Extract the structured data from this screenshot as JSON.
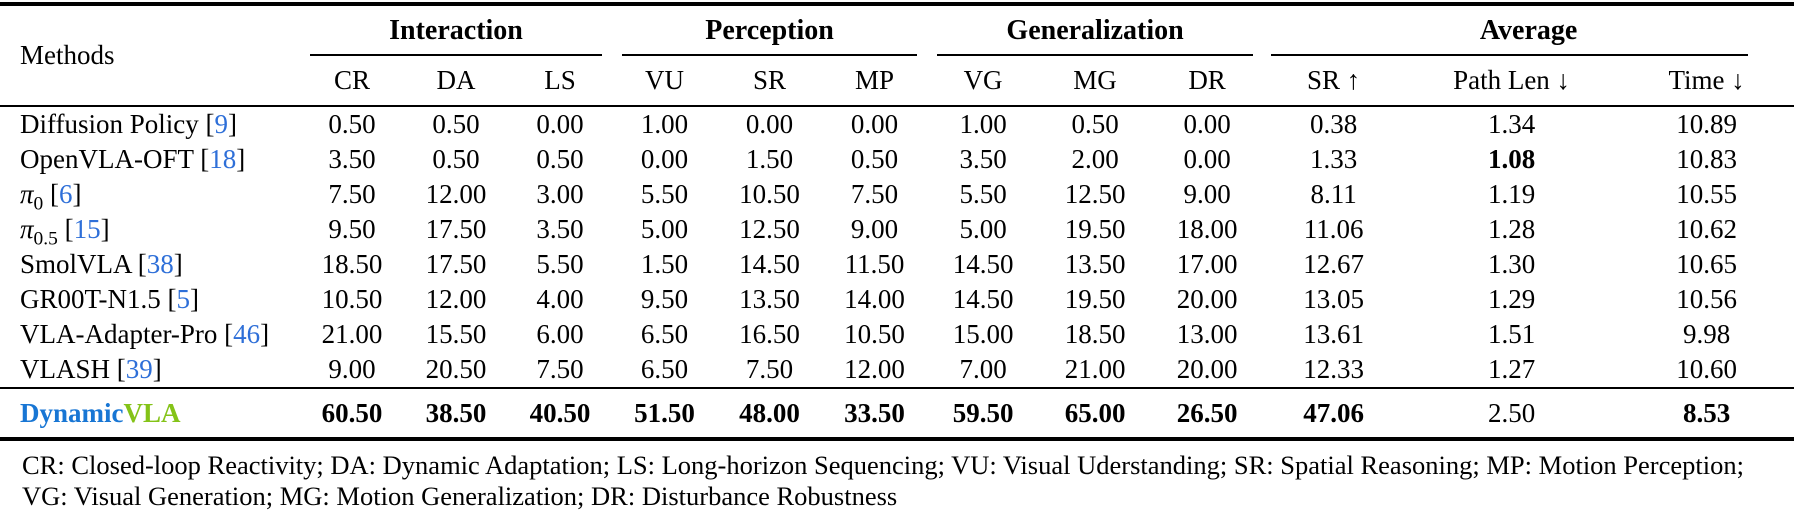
{
  "colors": {
    "citation": "#2e6fd8",
    "dynamic_blue": "#1876d4",
    "vla_green": "#84c318"
  },
  "table": {
    "col_methods": "Methods",
    "groups": [
      {
        "label": "Interaction",
        "cols": [
          "CR",
          "DA",
          "LS"
        ]
      },
      {
        "label": "Perception",
        "cols": [
          "VU",
          "SR",
          "MP"
        ]
      },
      {
        "label": "Generalization",
        "cols": [
          "VG",
          "MG",
          "DR"
        ]
      },
      {
        "label": "Average",
        "cols": [
          "SR ↑",
          "Path Len ↓",
          "Time ↓"
        ]
      }
    ],
    "rows": [
      {
        "method": [
          {
            "text": "Diffusion Policy"
          }
        ],
        "cite": "9",
        "values": [
          "0.50",
          "0.50",
          "0.00",
          "1.00",
          "0.00",
          "0.00",
          "1.00",
          "0.50",
          "0.00",
          "0.38",
          "1.34",
          "10.89"
        ],
        "bold": []
      },
      {
        "method": [
          {
            "text": "OpenVLA-OFT"
          }
        ],
        "cite": "18",
        "values": [
          "3.50",
          "0.50",
          "0.50",
          "0.00",
          "1.50",
          "0.50",
          "3.50",
          "2.00",
          "0.00",
          "1.33",
          "1.08",
          "10.83"
        ],
        "bold": [
          10
        ]
      },
      {
        "method": [
          {
            "text": "π",
            "italic": true
          },
          {
            "text": "0",
            "sub": true
          }
        ],
        "cite": "6",
        "values": [
          "7.50",
          "12.00",
          "3.00",
          "5.50",
          "10.50",
          "7.50",
          "5.50",
          "12.50",
          "9.00",
          "8.11",
          "1.19",
          "10.55"
        ],
        "bold": []
      },
      {
        "method": [
          {
            "text": "π",
            "italic": true
          },
          {
            "text": "0.5",
            "sub": true
          }
        ],
        "cite": "15",
        "values": [
          "9.50",
          "17.50",
          "3.50",
          "5.00",
          "12.50",
          "9.00",
          "5.00",
          "19.50",
          "18.00",
          "11.06",
          "1.28",
          "10.62"
        ],
        "bold": []
      },
      {
        "method": [
          {
            "text": "SmolVLA"
          }
        ],
        "cite": "38",
        "values": [
          "18.50",
          "17.50",
          "5.50",
          "1.50",
          "14.50",
          "11.50",
          "14.50",
          "13.50",
          "17.00",
          "12.67",
          "1.30",
          "10.65"
        ],
        "bold": []
      },
      {
        "method": [
          {
            "text": "GR00T-N1.5"
          }
        ],
        "cite": "5",
        "values": [
          "10.50",
          "12.00",
          "4.00",
          "9.50",
          "13.50",
          "14.00",
          "14.50",
          "19.50",
          "20.00",
          "13.05",
          "1.29",
          "10.56"
        ],
        "bold": []
      },
      {
        "method": [
          {
            "text": "VLA-Adapter-Pro"
          }
        ],
        "cite": "46",
        "values": [
          "21.00",
          "15.50",
          "6.00",
          "6.50",
          "16.50",
          "10.50",
          "15.00",
          "18.50",
          "13.00",
          "13.61",
          "1.51",
          "9.98"
        ],
        "bold": []
      },
      {
        "method": [
          {
            "text": "VLASH"
          }
        ],
        "cite": "39",
        "values": [
          "9.00",
          "20.50",
          "7.50",
          "6.50",
          "7.50",
          "12.00",
          "7.00",
          "21.00",
          "20.00",
          "12.33",
          "1.27",
          "10.60"
        ],
        "bold": []
      }
    ],
    "highlight_row": {
      "method": [
        {
          "text": "Dynamic",
          "color": "dynamic_blue",
          "bold": true
        },
        {
          "text": "VLA",
          "color": "vla_green",
          "bold": true
        }
      ],
      "cite": null,
      "values": [
        "60.50",
        "38.50",
        "40.50",
        "51.50",
        "48.00",
        "33.50",
        "59.50",
        "65.00",
        "26.50",
        "47.06",
        "2.50",
        "8.53"
      ],
      "bold": [
        0,
        1,
        2,
        3,
        4,
        5,
        6,
        7,
        8,
        9,
        11
      ]
    },
    "footnote": "CR: Closed-loop Reactivity; DA: Dynamic Adaptation; LS: Long-horizon Sequencing; VU: Visual Uderstanding; SR: Spatial Reasoning; MP: Motion Perception; VG: Visual Generation; MG: Motion Generalization; DR: Disturbance Robustness"
  }
}
